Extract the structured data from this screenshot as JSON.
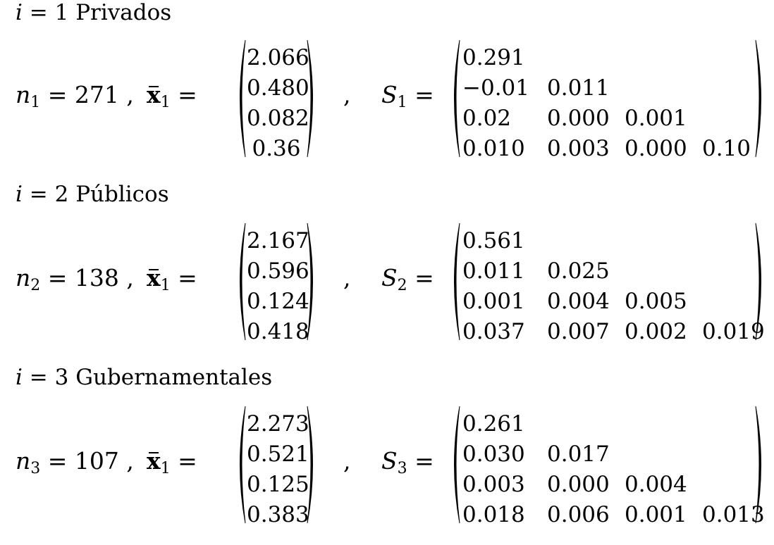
{
  "groups": [
    {
      "heading_var": "i",
      "heading_eq": " = 1 ",
      "heading_label": "Privados",
      "n_var": "n",
      "n_sub": "1",
      "n_rest": " = 271 ,",
      "xbar_sym": "x",
      "xbar_sub": "1",
      "xbar_eq": " =",
      "mean_vector": [
        "2.066",
        "0.480",
        "0.082",
        "0.36"
      ],
      "sep": ",",
      "s_var": "S",
      "s_sub": "1",
      "s_eq": " =",
      "cov_rows": [
        [
          "0.291"
        ],
        [
          "−0.01",
          "0.011"
        ],
        [
          "0.02",
          "0.000",
          "0.001"
        ],
        [
          "0.010",
          "0.003",
          "0.000",
          "0.10"
        ]
      ]
    },
    {
      "heading_var": "i",
      "heading_eq": " = 2 ",
      "heading_label": "Públicos",
      "n_var": "n",
      "n_sub": "2",
      "n_rest": " = 138 ,",
      "xbar_sym": "x",
      "xbar_sub": "1",
      "xbar_eq": " =",
      "mean_vector": [
        "2.167",
        "0.596",
        "0.124",
        "0.418"
      ],
      "sep": ",",
      "s_var": "S",
      "s_sub": "2",
      "s_eq": " =",
      "cov_rows": [
        [
          "0.561"
        ],
        [
          "0.011",
          "0.025"
        ],
        [
          "0.001",
          "0.004",
          "0.005"
        ],
        [
          "0.037",
          "0.007",
          "0.002",
          "0.019"
        ]
      ]
    },
    {
      "heading_var": "i",
      "heading_eq": " = 3 ",
      "heading_label": "Gubernamentales",
      "n_var": "n",
      "n_sub": "3",
      "n_rest": " = 107 ,",
      "xbar_sym": "x",
      "xbar_sub": "1",
      "xbar_eq": " =",
      "mean_vector": [
        "2.273",
        "0.521",
        "0.125",
        "0.383"
      ],
      "sep": ",",
      "s_var": "S",
      "s_sub": "3",
      "s_eq": " =",
      "cov_rows": [
        [
          "0.261"
        ],
        [
          "0.030",
          "0.017"
        ],
        [
          "0.003",
          "0.000",
          "0.004"
        ],
        [
          "0.018",
          "0.006",
          "0.001",
          "0.013"
        ]
      ]
    }
  ]
}
